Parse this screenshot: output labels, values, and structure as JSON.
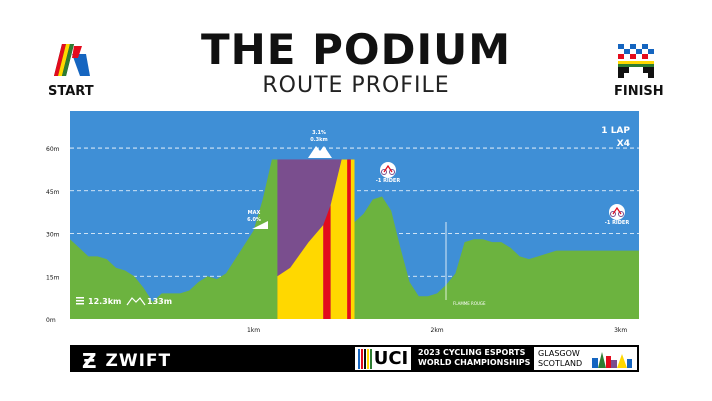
{
  "header": {
    "title": "THE PODIUM",
    "subtitle": "ROUTE PROFILE",
    "start_label": "START",
    "finish_label": "FINISH"
  },
  "chart_labels": {
    "laps": "1 LAP",
    "laps_multiplier": "X4",
    "summit_grade": "3.1%",
    "summit_length": "0.3km",
    "max_label": "MAX",
    "max_grade": "6.0%",
    "rider_drop_1": "-1 RIDER",
    "rider_drop_2": "-1 RIDER",
    "flamme_rouge": "FLAMME ROUGE",
    "distance": "12.3km",
    "elevation": "133m"
  },
  "chart_data": {
    "type": "area",
    "xlabel": "",
    "ylabel": "",
    "x_ticks": [
      "1km",
      "2km",
      "3km"
    ],
    "y_ticks": [
      "0m",
      "15m",
      "30m",
      "45m",
      "60m"
    ],
    "xlim": [
      0,
      3.1
    ],
    "ylim": [
      0,
      73
    ],
    "grid": true,
    "x": [
      0,
      0.05,
      0.1,
      0.15,
      0.2,
      0.25,
      0.3,
      0.35,
      0.4,
      0.45,
      0.5,
      0.55,
      0.6,
      0.65,
      0.7,
      0.75,
      0.8,
      0.85,
      0.9,
      0.95,
      1.0,
      1.05,
      1.1,
      1.15,
      1.2,
      1.25,
      1.3,
      1.35,
      1.4,
      1.45,
      1.5,
      1.55,
      1.6,
      1.65,
      1.7,
      1.75,
      1.8,
      1.85,
      1.9,
      1.95,
      2.0,
      2.05,
      2.1,
      2.15,
      2.2,
      2.25,
      2.3,
      2.35,
      2.4,
      2.45,
      2.5,
      2.55,
      2.6,
      2.65,
      2.7,
      2.75,
      2.8,
      2.85,
      2.9,
      2.95,
      3.0,
      3.05,
      3.1
    ],
    "elevation_m": [
      28,
      25,
      22,
      22,
      21,
      18,
      17,
      15,
      11,
      6,
      9,
      9,
      9,
      10,
      13,
      15,
      14,
      16,
      21,
      26,
      31,
      42,
      56,
      56,
      49,
      41,
      35,
      40,
      45,
      40,
      41,
      34,
      37,
      42,
      43,
      38,
      25,
      13,
      8,
      8,
      9,
      12,
      16,
      27,
      28,
      28,
      27,
      27,
      25,
      22,
      21,
      22,
      23,
      24,
      24,
      24,
      24,
      24,
      24,
      24,
      24,
      24,
      24
    ],
    "climb_segment_km": [
      1.13,
      1.55
    ],
    "climb_top_m": 56
  },
  "colors": {
    "sky": "#3f8fd6",
    "terrain": "#6cb33f",
    "climb_highlight": "#7a4e8e",
    "yellow": "#ffd800",
    "red": "#e30b1c",
    "gridline": "#ffffff"
  },
  "footer": {
    "zwift": "ZWIFT",
    "uci": "UCI",
    "championship_line1": "2023 CYCLING ESPORTS",
    "championship_line2": "WORLD CHAMPIONSHIPS",
    "glasgow_line1": "GLASGOW",
    "glasgow_line2": "SCOTLAND"
  }
}
